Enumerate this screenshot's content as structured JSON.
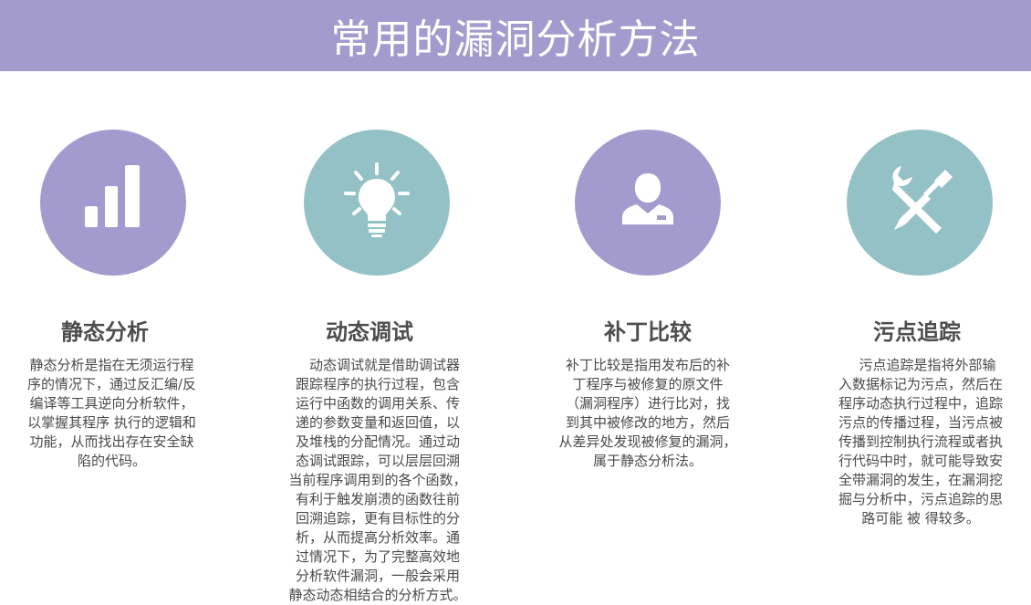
{
  "header": {
    "title": "常用的漏洞分析方法"
  },
  "colors": {
    "purple": "#a39bcd",
    "teal": "#94c1c5"
  },
  "cards": [
    {
      "title": "静态分析",
      "icon": "bar-chart-icon",
      "lines": [
        "静态分析是指在无须运行程",
        "序的情况下，通过反汇编/反",
        "编译等工具逆向分析软件，",
        "以掌握其程序 执行的逻辑和",
        "功能，从而找出存在安全缺",
        "陷的代码。"
      ]
    },
    {
      "title": "动态调试",
      "icon": "lightbulb-icon",
      "lines": [
        "　动态调试就是借助调试器",
        "跟踪程序的执行过程，包含",
        "运行中函数的调用关系、传",
        "递的参数变量和返回值，以",
        "及堆栈的分配情况。通过动",
        "态调试跟踪，可以层层回溯",
        "当前程序调用到的各个函数，",
        "有利于触发崩溃的函数往前",
        "回溯追踪，更有目标性的分",
        "析，从而提高分析效率。通",
        "过情况下，为了完整高效地",
        "分析软件漏洞，一般会采用",
        "静态动态相结合的分析方式。"
      ]
    },
    {
      "title": "补丁比较",
      "icon": "user-icon",
      "lines": [
        "补丁比较是指用发布后的补",
        "丁程序与被修复的原文件",
        "（漏洞程序）进行比对，找",
        "到其中被修改的地方，然后",
        "从差异处发现被修复的漏洞，",
        "属于静态分析法。"
      ]
    },
    {
      "title": "污点追踪",
      "icon": "tools-icon",
      "lines": [
        "　污点追踪是指将外部输",
        "入数据标记为污点，然后在",
        "程序动态执行过程中，追踪",
        "污点的传播过程，当污点被",
        "传播到控制执行流程或者执",
        "行代码中时，就可能导致安",
        "全带漏洞的发生，在漏洞挖",
        "掘与分析中，污点追踪的思",
        "路可能 被 得较多。"
      ]
    }
  ]
}
